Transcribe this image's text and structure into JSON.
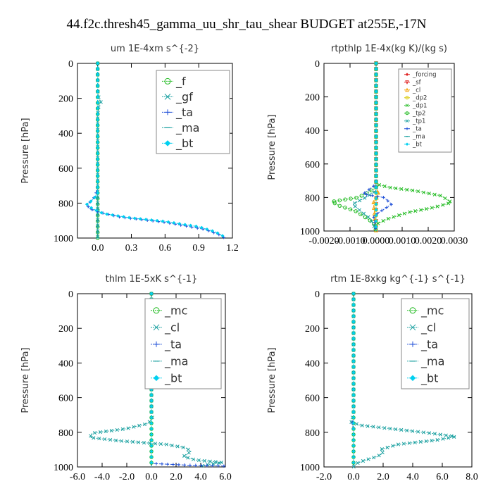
{
  "title": "44.f2c.thresh45_gamma_uu_shr_tau_shear  BUDGET at255E,-17N",
  "colors": {
    "green": "#22bb22",
    "teal": "#1aa0a0",
    "blue": "#1f4fd8",
    "cyan": "#00d0f0",
    "red": "#e02020",
    "orange": "#f5a000",
    "yellow": "#d8c800",
    "frame": "#000000",
    "legend_border": "#888888"
  },
  "chart_data": [
    {
      "type": "line",
      "title": "um  1E-4xm s^{-2}",
      "ylabel": "Pressure [hPa]",
      "xlim": [
        -0.18,
        1.2
      ],
      "ylim": [
        1000,
        0
      ],
      "xticks": [
        "0.0",
        "0.3",
        "0.6",
        "0.9",
        "1.2"
      ],
      "xtick_values": [
        0,
        0.3,
        0.6,
        0.9,
        1.2
      ],
      "yticks": [
        "0",
        "200",
        "400",
        "600",
        "800",
        "1000"
      ],
      "ytick_values": [
        0,
        200,
        400,
        600,
        800,
        1000
      ],
      "grid": false,
      "legend_position": "top-right",
      "series": [
        {
          "name": "_f",
          "color": "green",
          "marker": "circle",
          "points": [
            [
              0,
              0
            ],
            [
              0,
              100
            ],
            [
              0,
              200
            ],
            [
              0,
              300
            ],
            [
              0,
              400
            ],
            [
              0,
              500
            ],
            [
              0,
              600
            ],
            [
              0,
              700
            ],
            [
              0,
              800
            ],
            [
              0,
              900
            ],
            [
              0,
              1000
            ]
          ]
        },
        {
          "name": "_gf",
          "color": "teal",
          "marker": "x",
          "points": [
            [
              0,
              0
            ],
            [
              0,
              150
            ],
            [
              0.01,
              200
            ],
            [
              0.03,
              220
            ],
            [
              0.01,
              240
            ],
            [
              0,
              300
            ],
            [
              0,
              500
            ],
            [
              0,
              700
            ],
            [
              0,
              800
            ],
            [
              0,
              1000
            ]
          ]
        },
        {
          "name": "_ta",
          "color": "blue",
          "marker": "plus",
          "points": [
            [
              0,
              0
            ],
            [
              0,
              700
            ],
            [
              -0.02,
              760
            ],
            [
              -0.05,
              780
            ],
            [
              -0.09,
              810
            ],
            [
              -0.08,
              830
            ],
            [
              0,
              850
            ],
            [
              0.2,
              880
            ],
            [
              0.6,
              910
            ],
            [
              0.95,
              950
            ],
            [
              1.1,
              985
            ],
            [
              1.13,
              1000
            ]
          ]
        },
        {
          "name": "_ma",
          "color": "teal",
          "marker": "dash",
          "points": [
            [
              0,
              0
            ],
            [
              0,
              1000
            ]
          ]
        },
        {
          "name": "_bt",
          "color": "cyan",
          "marker": "diamond",
          "points": [
            [
              0,
              0
            ],
            [
              0,
              750
            ],
            [
              -0.06,
              790
            ],
            [
              -0.1,
              805
            ],
            [
              -0.05,
              830
            ],
            [
              0.05,
              860
            ],
            [
              0.3,
              885
            ],
            [
              0.6,
              905
            ],
            [
              0.9,
              935
            ],
            [
              1.05,
              965
            ],
            [
              1.12,
              990
            ],
            [
              1.13,
              1000
            ]
          ]
        }
      ]
    },
    {
      "type": "line",
      "title": "rtpthlp  1E-4x(kg K)/(kg s)",
      "ylabel": "Pressure [hPa]",
      "xlim": [
        -0.002,
        0.003
      ],
      "ylim": [
        1000,
        0
      ],
      "xticks": [
        "-0.0020",
        "-0.0010",
        "0.0000",
        "0.0010",
        "0.0020",
        "0.0030"
      ],
      "xtick_values": [
        -0.002,
        -0.001,
        0,
        0.001,
        0.002,
        0.003
      ],
      "yticks": [
        "0",
        "200",
        "400",
        "600",
        "800",
        "1000"
      ],
      "ytick_values": [
        0,
        200,
        400,
        600,
        800,
        1000
      ],
      "grid": false,
      "legend_position": "top-right",
      "series": [
        {
          "name": "_forcing",
          "color": "red",
          "marker": "diamond",
          "points": [
            [
              0,
              0
            ],
            [
              0,
              100
            ],
            [
              0,
              200
            ],
            [
              0,
              300
            ],
            [
              0,
              400
            ],
            [
              0,
              500
            ],
            [
              0,
              600
            ],
            [
              0,
              700
            ],
            [
              0,
              800
            ],
            [
              0,
              900
            ],
            [
              0,
              1000
            ]
          ]
        },
        {
          "name": "_sf",
          "color": "red",
          "marker": "triangle-down",
          "points": [
            [
              0,
              0
            ],
            [
              0,
              1000
            ]
          ]
        },
        {
          "name": "_cl",
          "color": "orange",
          "marker": "triangle",
          "points": [
            [
              0,
              0
            ],
            [
              0,
              740
            ],
            [
              0.0001,
              780
            ],
            [
              -0.0001,
              830
            ],
            [
              0,
              1000
            ]
          ]
        },
        {
          "name": "_dp2",
          "color": "yellow",
          "marker": "circle",
          "points": [
            [
              0,
              0
            ],
            [
              0,
              1000
            ]
          ]
        },
        {
          "name": "_dp1",
          "color": "green",
          "marker": "x",
          "points": [
            [
              0,
              0
            ],
            [
              0,
              720
            ],
            [
              0.0005,
              740
            ],
            [
              0.0015,
              760
            ],
            [
              0.0025,
              790
            ],
            [
              0.0029,
              830
            ],
            [
              0.0022,
              860
            ],
            [
              0.0012,
              890
            ],
            [
              0.0004,
              930
            ],
            [
              0,
              960
            ],
            [
              0,
              1000
            ]
          ]
        },
        {
          "name": "_tp2",
          "color": "green",
          "marker": "circle",
          "points": [
            [
              0,
              0
            ],
            [
              0,
              740
            ],
            [
              -0.0003,
              770
            ],
            [
              -0.0007,
              800
            ],
            [
              -0.0017,
              825
            ],
            [
              -0.0014,
              850
            ],
            [
              -0.0008,
              880
            ],
            [
              -0.0004,
              920
            ],
            [
              -0.0001,
              950
            ],
            [
              0,
              1000
            ]
          ]
        },
        {
          "name": "_tp1",
          "color": "teal",
          "marker": "x",
          "points": [
            [
              0,
              0
            ],
            [
              0,
              760
            ],
            [
              -0.0004,
              800
            ],
            [
              -0.0009,
              840
            ],
            [
              -0.0006,
              880
            ],
            [
              -0.0002,
              930
            ],
            [
              0,
              1000
            ]
          ]
        },
        {
          "name": "_ta",
          "color": "blue",
          "marker": "plus",
          "points": [
            [
              0,
              0
            ],
            [
              0,
              720
            ],
            [
              -0.0005,
              780
            ],
            [
              0.0003,
              800
            ],
            [
              0.0006,
              840
            ],
            [
              0.0002,
              880
            ],
            [
              -0.0001,
              910
            ],
            [
              0,
              1000
            ]
          ]
        },
        {
          "name": "_ma",
          "color": "teal",
          "marker": "dash",
          "points": [
            [
              0,
              0
            ],
            [
              0,
              1000
            ]
          ]
        },
        {
          "name": "_bt",
          "color": "cyan",
          "marker": "diamond",
          "points": [
            [
              0,
              0
            ],
            [
              0,
              1000
            ]
          ]
        }
      ]
    },
    {
      "type": "line",
      "title": "thlm  1E-5xK s^{-1}",
      "ylabel": "Pressure [hPa]",
      "xlim": [
        -6.0,
        6.0
      ],
      "ylim": [
        1000,
        0
      ],
      "xticks": [
        "-6.0",
        "-4.0",
        "-2.0",
        "0.0",
        "2.0",
        "4.0",
        "6.0"
      ],
      "xtick_values": [
        -6,
        -4,
        -2,
        0,
        2,
        4,
        6
      ],
      "yticks": [
        "0",
        "200",
        "400",
        "600",
        "800",
        "1000"
      ],
      "ytick_values": [
        0,
        200,
        400,
        600,
        800,
        1000
      ],
      "grid": false,
      "legend_position": "top-right",
      "series": [
        {
          "name": "_mc",
          "color": "green",
          "marker": "circle",
          "points": [
            [
              0,
              0
            ],
            [
              0,
              100
            ],
            [
              0,
              200
            ],
            [
              0,
              300
            ],
            [
              0,
              400
            ],
            [
              0,
              500
            ],
            [
              0,
              600
            ],
            [
              0,
              700
            ],
            [
              0,
              800
            ],
            [
              0,
              900
            ],
            [
              0,
              1000
            ]
          ]
        },
        {
          "name": "_cl",
          "color": "teal",
          "marker": "x",
          "points": [
            [
              0,
              0
            ],
            [
              0,
              700
            ],
            [
              0.1,
              720
            ],
            [
              -0.3,
              750
            ],
            [
              -2.1,
              780
            ],
            [
              -4.8,
              805
            ],
            [
              -5.0,
              830
            ],
            [
              -2.5,
              850
            ],
            [
              1.2,
              870
            ],
            [
              2.8,
              890
            ],
            [
              3.2,
              910
            ],
            [
              2.6,
              940
            ],
            [
              3.6,
              960
            ],
            [
              5.8,
              975
            ],
            [
              4.2,
              990
            ],
            [
              4.0,
              1000
            ]
          ]
        },
        {
          "name": "_ta",
          "color": "blue",
          "marker": "plus",
          "points": [
            [
              0,
              0
            ],
            [
              0,
              980
            ],
            [
              3,
              990
            ],
            [
              6,
              995
            ]
          ]
        },
        {
          "name": "_ma",
          "color": "teal",
          "marker": "dash",
          "points": [
            [
              0,
              0
            ],
            [
              0,
              1000
            ]
          ]
        },
        {
          "name": "_bt",
          "color": "cyan",
          "marker": "diamond",
          "points": [
            [
              0,
              0
            ],
            [
              0,
              1000
            ]
          ]
        }
      ]
    },
    {
      "type": "line",
      "title": "rtm  1E-8xkg kg^{-1} s^{-1}",
      "ylabel": "Pressure [hPa]",
      "xlim": [
        -2.0,
        8.0
      ],
      "ylim": [
        1000,
        0
      ],
      "xticks": [
        "-2.0",
        "0.0",
        "2.0",
        "4.0",
        "6.0",
        "8.0"
      ],
      "xtick_values": [
        -2,
        0,
        2,
        4,
        6,
        8
      ],
      "yticks": [
        "0",
        "200",
        "400",
        "600",
        "800",
        "1000"
      ],
      "ytick_values": [
        0,
        200,
        400,
        600,
        800,
        1000
      ],
      "grid": false,
      "legend_position": "top-right",
      "series": [
        {
          "name": "_mc",
          "color": "green",
          "marker": "circle",
          "points": [
            [
              0,
              0
            ],
            [
              0,
              100
            ],
            [
              0,
              200
            ],
            [
              0,
              300
            ],
            [
              0,
              400
            ],
            [
              0,
              500
            ],
            [
              0,
              600
            ],
            [
              0,
              700
            ],
            [
              0,
              800
            ],
            [
              0,
              900
            ],
            [
              0,
              1000
            ]
          ]
        },
        {
          "name": "_cl",
          "color": "teal",
          "marker": "x",
          "points": [
            [
              0,
              0
            ],
            [
              0,
              700
            ],
            [
              -0.2,
              740
            ],
            [
              0.5,
              760
            ],
            [
              2.6,
              780
            ],
            [
              5.2,
              805
            ],
            [
              6.9,
              825
            ],
            [
              5.6,
              845
            ],
            [
              3.0,
              870
            ],
            [
              1.8,
              900
            ],
            [
              2.0,
              920
            ],
            [
              1.6,
              940
            ],
            [
              0.8,
              960
            ],
            [
              0.2,
              980
            ],
            [
              0,
              1000
            ]
          ]
        },
        {
          "name": "_ta",
          "color": "blue",
          "marker": "plus",
          "points": [
            [
              0,
              0
            ],
            [
              0,
              720
            ],
            [
              -0.1,
              750
            ],
            [
              0,
              780
            ],
            [
              0,
              1000
            ]
          ]
        },
        {
          "name": "_ma",
          "color": "teal",
          "marker": "dash",
          "points": [
            [
              0,
              0
            ],
            [
              0,
              1000
            ]
          ]
        },
        {
          "name": "_bt",
          "color": "cyan",
          "marker": "diamond",
          "points": [
            [
              0,
              0
            ],
            [
              0,
              1000
            ]
          ]
        }
      ]
    }
  ]
}
